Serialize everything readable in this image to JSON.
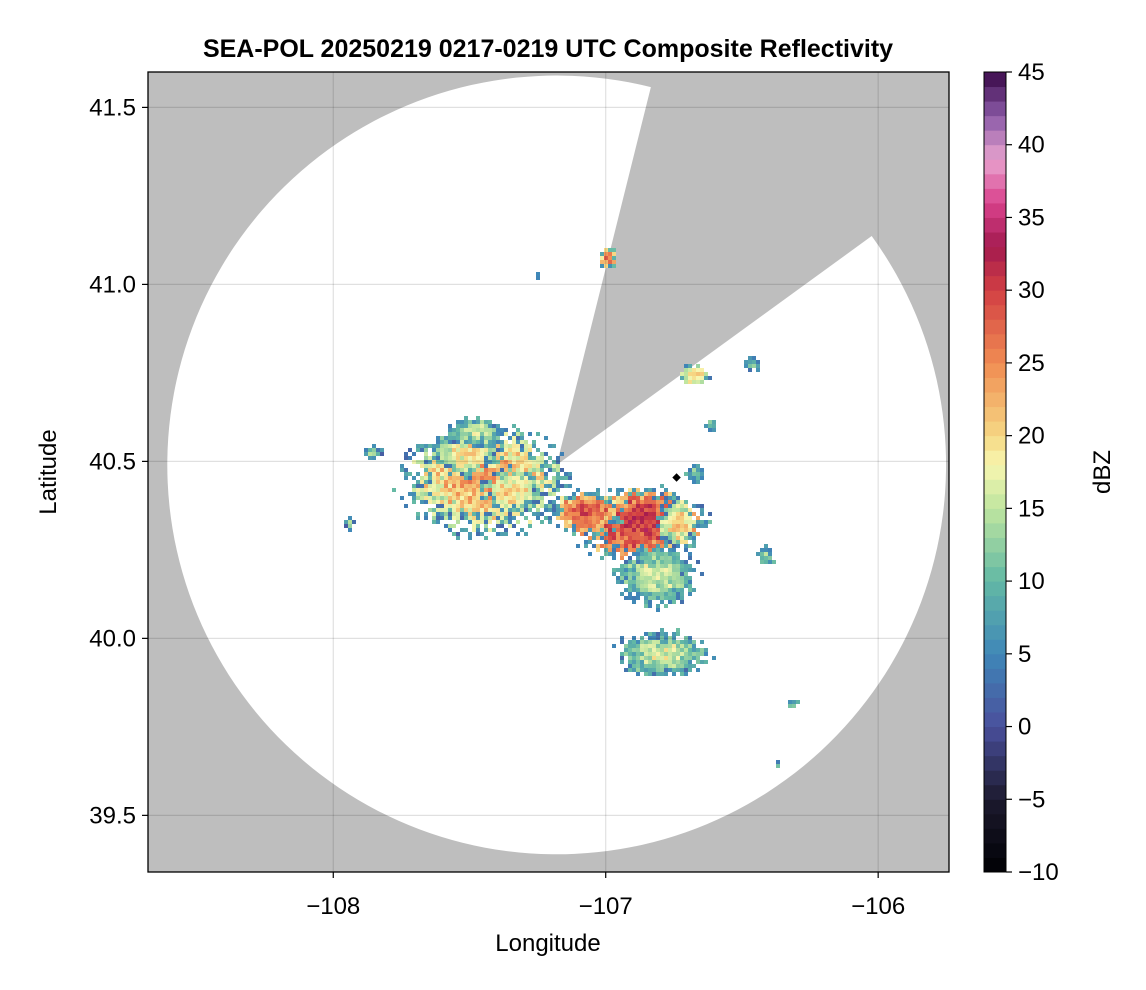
{
  "chart_data": {
    "type": "heatmap",
    "title": "SEA-POL 20250219 0217-0219 UTC Composite Reflectivity",
    "xlabel": "Longitude",
    "ylabel": "Latitude",
    "xlim": [
      -108.68,
      -105.74
    ],
    "ylim": [
      39.34,
      41.6
    ],
    "x_ticks": [
      -108,
      -107,
      -106
    ],
    "x_tick_labels": [
      "−108",
      "−107",
      "−106"
    ],
    "y_ticks": [
      39.5,
      40.0,
      40.5,
      41.0,
      41.5
    ],
    "y_tick_labels": [
      "39.5",
      "40.0",
      "40.5",
      "41.0",
      "41.5"
    ],
    "grid": true,
    "radar": {
      "center": [
        -107.18,
        40.49
      ],
      "range_lat_deg": 1.1,
      "blocked_sector_bearings_deg": [
        14,
        54
      ],
      "blocked_color": "#bebebe",
      "coverage_color": "#ffffff"
    },
    "colorbar": {
      "label": "dBZ",
      "min": -10,
      "max": 45,
      "ticks": [
        -10,
        -5,
        0,
        5,
        10,
        15,
        20,
        25,
        30,
        35,
        40,
        45
      ],
      "tick_labels": [
        "−10",
        "−5",
        "0",
        "5",
        "10",
        "15",
        "20",
        "25",
        "30",
        "35",
        "40",
        "45"
      ],
      "colormap": "spectral-reversed",
      "color_stops": [
        {
          "v": -10,
          "c": "#000004"
        },
        {
          "v": -5,
          "c": "#1c1a2e"
        },
        {
          "v": 0,
          "c": "#4a4f9c"
        },
        {
          "v": 5,
          "c": "#3f87b8"
        },
        {
          "v": 10,
          "c": "#62b8a5"
        },
        {
          "v": 15,
          "c": "#bfe59f"
        },
        {
          "v": 18,
          "c": "#f7f6b0"
        },
        {
          "v": 20,
          "c": "#f6d884"
        },
        {
          "v": 25,
          "c": "#f08c52"
        },
        {
          "v": 30,
          "c": "#d23f43"
        },
        {
          "v": 33,
          "c": "#a31a4f"
        },
        {
          "v": 36,
          "c": "#d9418c"
        },
        {
          "v": 39,
          "c": "#e9a3cf"
        },
        {
          "v": 42,
          "c": "#8a5aa7"
        },
        {
          "v": 45,
          "c": "#3a0848"
        }
      ]
    },
    "echoes": [
      {
        "lon": -107.45,
        "lat": 40.45,
        "dlon": 0.28,
        "dlat": 0.14,
        "peak": 24
      },
      {
        "lon": -107.52,
        "lat": 40.53,
        "dlon": 0.12,
        "dlat": 0.06,
        "peak": 20
      },
      {
        "lon": -107.48,
        "lat": 40.59,
        "dlon": 0.1,
        "dlat": 0.04,
        "peak": 16
      },
      {
        "lon": -107.35,
        "lat": 40.42,
        "dlon": 0.1,
        "dlat": 0.06,
        "peak": 21
      },
      {
        "lon": -106.88,
        "lat": 40.33,
        "dlon": 0.22,
        "dlat": 0.1,
        "peak": 31
      },
      {
        "lon": -107.08,
        "lat": 40.36,
        "dlon": 0.12,
        "dlat": 0.06,
        "peak": 29
      },
      {
        "lon": -106.74,
        "lat": 40.33,
        "dlon": 0.07,
        "dlat": 0.07,
        "peak": 22
      },
      {
        "lon": -106.82,
        "lat": 40.18,
        "dlon": 0.14,
        "dlat": 0.08,
        "peak": 17
      },
      {
        "lon": -106.8,
        "lat": 39.96,
        "dlon": 0.16,
        "dlat": 0.06,
        "peak": 17
      },
      {
        "lon": -107.86,
        "lat": 40.53,
        "dlon": 0.03,
        "dlat": 0.02,
        "peak": 13
      },
      {
        "lon": -107.95,
        "lat": 40.33,
        "dlon": 0.02,
        "dlat": 0.02,
        "peak": 12
      },
      {
        "lon": -107.0,
        "lat": 41.08,
        "dlon": 0.03,
        "dlat": 0.03,
        "peak": 27
      },
      {
        "lon": -107.26,
        "lat": 41.03,
        "dlon": 0.01,
        "dlat": 0.01,
        "peak": 12
      },
      {
        "lon": -106.68,
        "lat": 40.75,
        "dlon": 0.05,
        "dlat": 0.03,
        "peak": 22
      },
      {
        "lon": -106.47,
        "lat": 40.78,
        "dlon": 0.03,
        "dlat": 0.02,
        "peak": 12
      },
      {
        "lon": -106.42,
        "lat": 40.24,
        "dlon": 0.03,
        "dlat": 0.03,
        "peak": 14
      },
      {
        "lon": -106.32,
        "lat": 39.82,
        "dlon": 0.02,
        "dlat": 0.01,
        "peak": 17
      },
      {
        "lon": -106.38,
        "lat": 39.65,
        "dlon": 0.01,
        "dlat": 0.01,
        "peak": 20
      },
      {
        "lon": -106.62,
        "lat": 40.61,
        "dlon": 0.02,
        "dlat": 0.02,
        "peak": 13
      },
      {
        "lon": -106.68,
        "lat": 40.47,
        "dlon": 0.03,
        "dlat": 0.03,
        "peak": 13
      }
    ],
    "marker": {
      "lon": -106.74,
      "lat": 40.455,
      "color": "#000000"
    }
  }
}
